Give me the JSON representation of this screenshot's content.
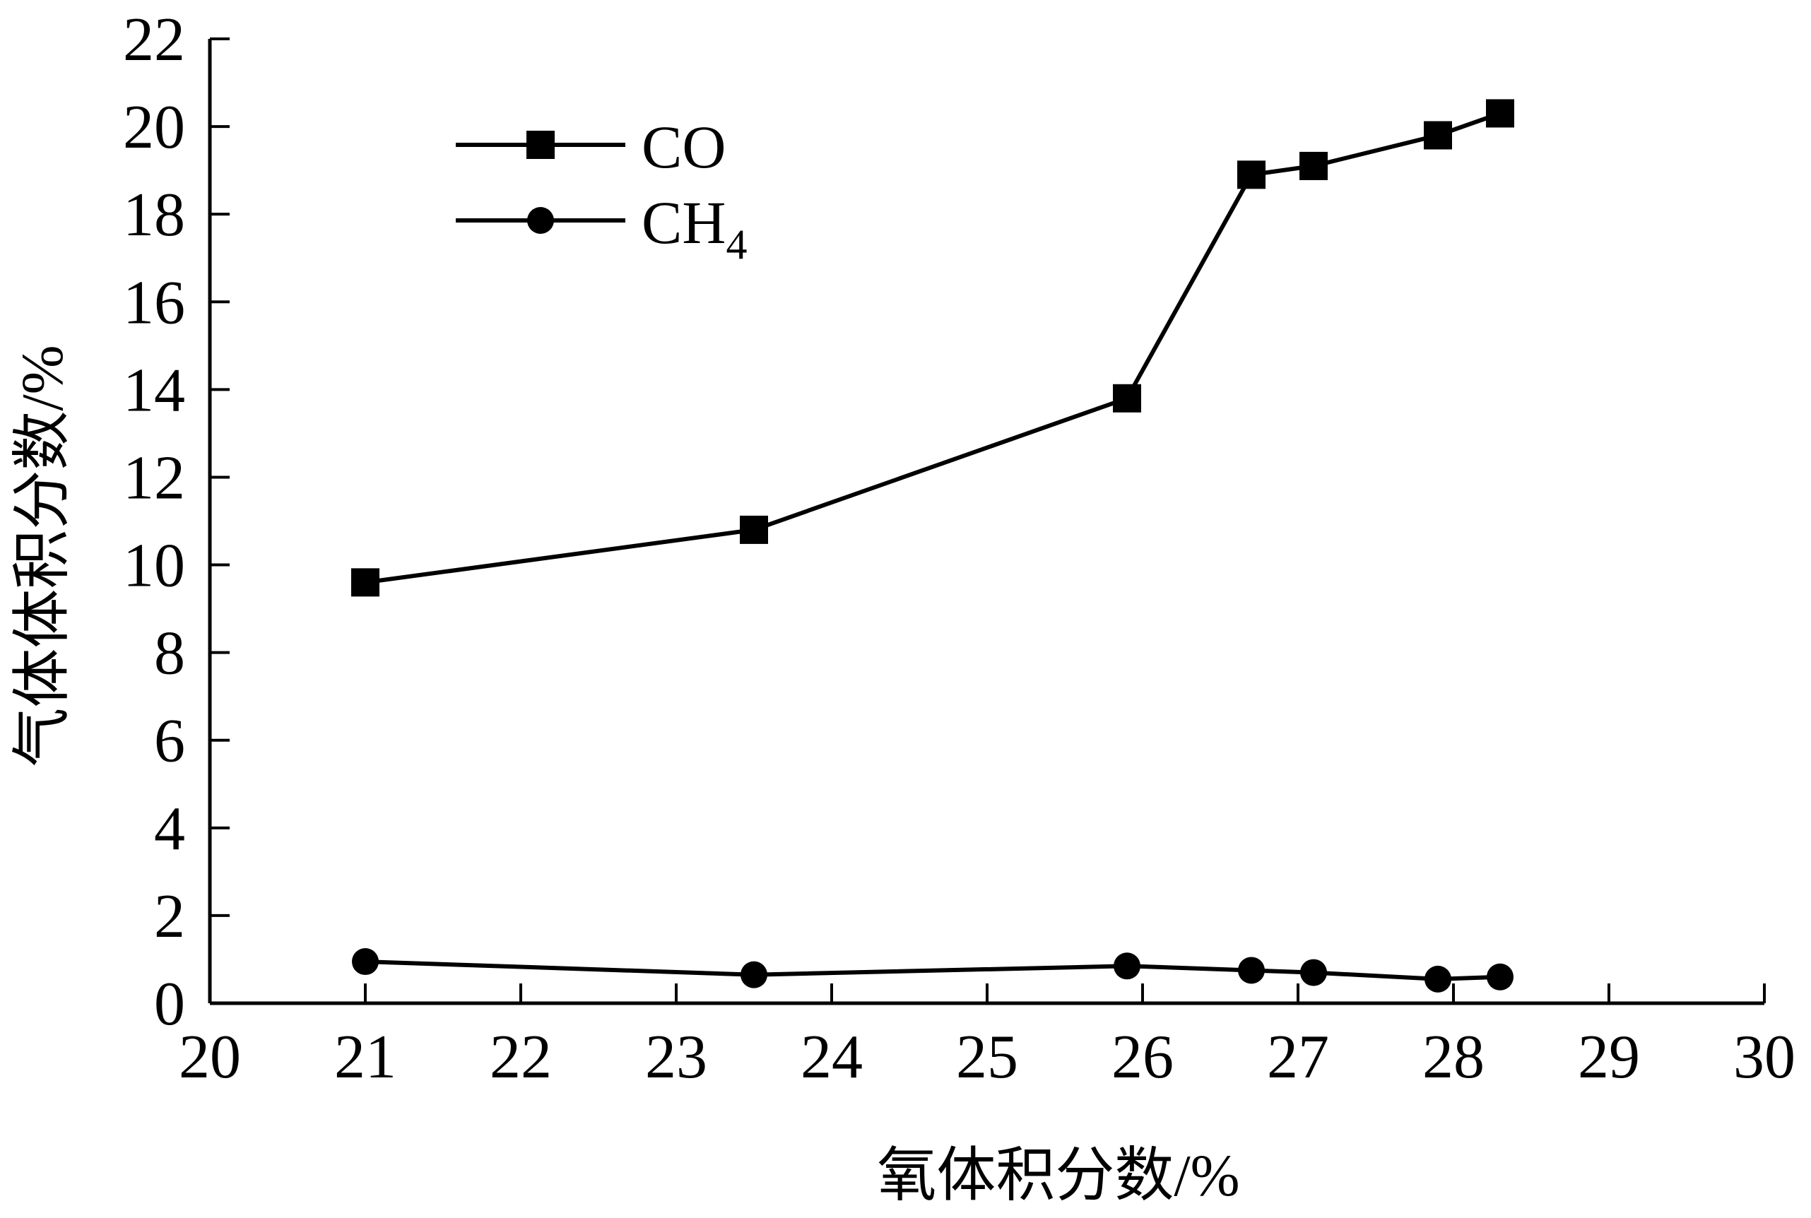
{
  "chart_data": {
    "type": "line",
    "title": "",
    "xlabel": "氧体积分数/%",
    "ylabel": "气体体积分数/%",
    "xlim": [
      20,
      30
    ],
    "ylim": [
      0,
      22
    ],
    "xticks": [
      "20",
      "21",
      "22",
      "23",
      "24",
      "25",
      "26",
      "27",
      "28",
      "29",
      "30"
    ],
    "yticks": [
      "0",
      "2",
      "4",
      "6",
      "8",
      "10",
      "12",
      "14",
      "16",
      "18",
      "20",
      "22"
    ],
    "grid": false,
    "legend_position": "top-left",
    "series": [
      {
        "name": "CO",
        "label_main": "CO",
        "label_sub": "",
        "marker": "square",
        "color": "#000000",
        "x": [
          21.0,
          23.5,
          25.9,
          26.7,
          27.1,
          27.9,
          28.3
        ],
        "y": [
          9.6,
          10.8,
          13.8,
          18.9,
          19.1,
          19.8,
          20.3
        ]
      },
      {
        "name": "CH4",
        "label_main": "CH",
        "label_sub": "4",
        "marker": "circle",
        "color": "#000000",
        "x": [
          21.0,
          23.5,
          25.9,
          26.7,
          27.1,
          27.9,
          28.3
        ],
        "y": [
          0.95,
          0.65,
          0.85,
          0.75,
          0.7,
          0.55,
          0.6
        ]
      }
    ]
  }
}
